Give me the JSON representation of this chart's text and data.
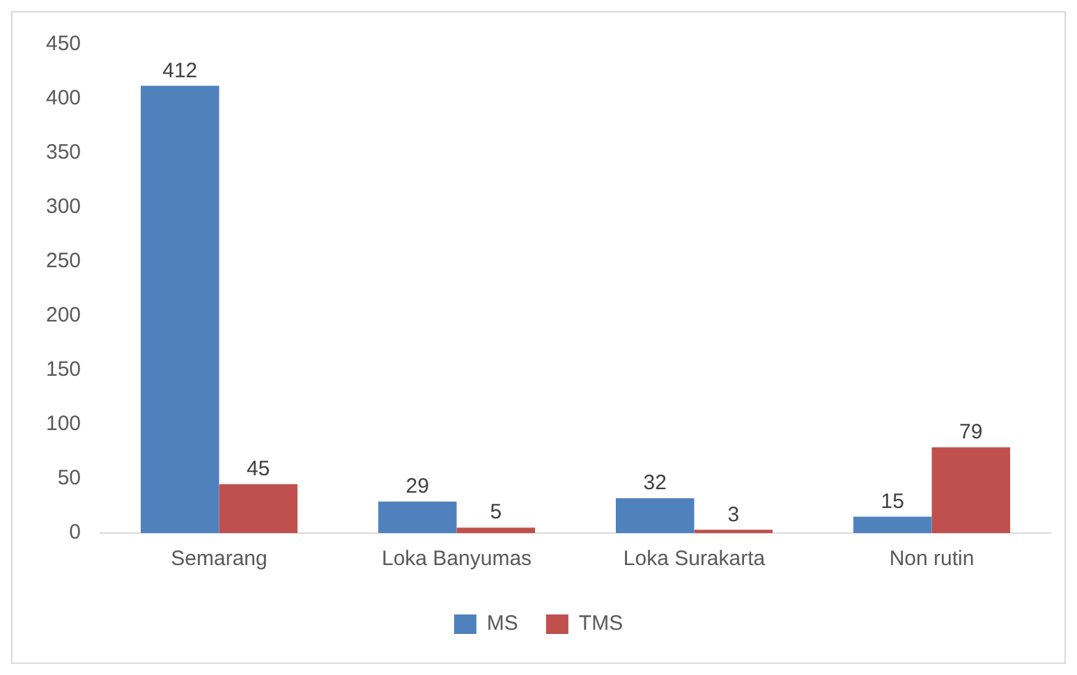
{
  "chart_data": {
    "type": "bar",
    "categories": [
      "Semarang",
      "Loka Banyumas",
      "Loka Surakarta",
      "Non rutin"
    ],
    "series": [
      {
        "name": "MS",
        "color": "#4f81bd",
        "values": [
          412,
          29,
          32,
          15
        ]
      },
      {
        "name": "TMS",
        "color": "#c0504d",
        "values": [
          45,
          5,
          3,
          79
        ]
      }
    ],
    "ylim": [
      0,
      450
    ],
    "yticks": [
      0,
      50,
      100,
      150,
      200,
      250,
      300,
      350,
      400,
      450
    ],
    "grid": false,
    "legend": "bottom",
    "data_labels": true
  }
}
